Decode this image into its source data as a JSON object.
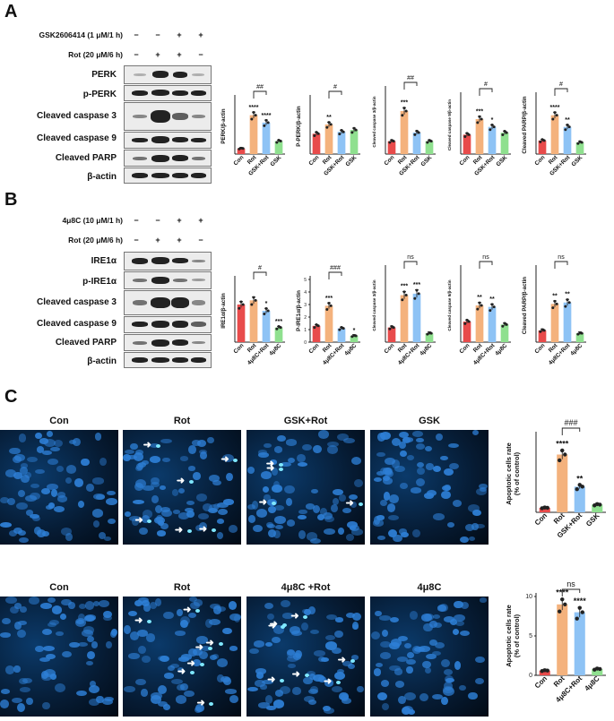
{
  "panels": {
    "a": "A",
    "b": "B",
    "c": "C"
  },
  "colors": {
    "con": "#e84b4b",
    "rot": "#f4b27d",
    "combo": "#8ec3f5",
    "single": "#8fe08f"
  },
  "panel_a": {
    "treatments": [
      {
        "label": "GSK2606414 (1 μM/1 h)",
        "signs": [
          "−",
          "−",
          "+",
          "+"
        ]
      },
      {
        "label": "Rot (20 μM/6 h)",
        "signs": [
          "−",
          "+",
          "+",
          "−"
        ]
      }
    ],
    "bands": [
      "PERK",
      "p-PERK",
      "Cleaved caspase 3",
      "Cleaved caspase 9",
      "Cleaved PARP",
      "β-actin"
    ]
  },
  "panel_b": {
    "treatments": [
      {
        "label": "4μ8C (10 μM/1 h)",
        "signs": [
          "−",
          "−",
          "+",
          "+"
        ]
      },
      {
        "label": "Rot (20 μM/6 h)",
        "signs": [
          "−",
          "+",
          "+",
          "−"
        ]
      }
    ],
    "bands": [
      "IRE1α",
      "p-IRE1α",
      "Cleaved caspase 3",
      "Cleaved caspase 9",
      "Cleaved PARP",
      "β-actin"
    ]
  },
  "panel_c": {
    "row1": [
      "Con",
      "Rot",
      "GSK+Rot",
      "GSK"
    ],
    "row2": [
      "Con",
      "Rot",
      "4μ8C +Rot",
      "4μ8C"
    ]
  },
  "chart_data": [
    {
      "type": "bar",
      "panel": "A",
      "ylabel": "PERK/β-actin",
      "categories": [
        "Con",
        "Rot",
        "GSK+Rot",
        "GSK"
      ],
      "values": [
        0.15,
        1.05,
        0.85,
        0.35
      ],
      "ymax": 1.5,
      "yticks": [],
      "bar_labels": [
        "",
        "****",
        "****",
        ""
      ],
      "bracket": {
        "from": 1,
        "to": 2,
        "label": "##"
      }
    },
    {
      "type": "bar",
      "panel": "A",
      "ylabel": "P-PERK/β-actin",
      "categories": [
        "Con",
        "Rot",
        "GSK+Rot",
        "GSK"
      ],
      "values": [
        0.55,
        0.8,
        0.6,
        0.65
      ],
      "ymax": 1.5,
      "yticks": [],
      "bar_labels": [
        "",
        "**",
        "",
        ""
      ],
      "bracket": {
        "from": 1,
        "to": 2,
        "label": "#"
      }
    },
    {
      "type": "bar",
      "panel": "A",
      "ylabel": "Cleaved caspase 3/β-actin",
      "categories": [
        "Con",
        "Rot",
        "GSK+Rot",
        "GSK"
      ],
      "values": [
        0.3,
        1.0,
        0.5,
        0.3
      ],
      "ymax": 1.5,
      "yticks": [],
      "bar_labels": [
        "",
        "***",
        "",
        ""
      ],
      "bracket": {
        "from": 1,
        "to": 2,
        "label": "##"
      }
    },
    {
      "type": "bar",
      "panel": "A",
      "ylabel": "Cleaved caspase 9/β-actin",
      "categories": [
        "Con",
        "Rot",
        "GSK+Rot",
        "GSK"
      ],
      "values": [
        0.5,
        0.9,
        0.7,
        0.55
      ],
      "ymax": 1.5,
      "yticks": [],
      "bar_labels": [
        "",
        "***",
        "*",
        ""
      ],
      "bracket": {
        "from": 1,
        "to": 2,
        "label": "#"
      }
    },
    {
      "type": "bar",
      "panel": "A",
      "ylabel": "Cleaved PARP/β-actin",
      "categories": [
        "Con",
        "Rot",
        "GSK+Rot",
        "GSK"
      ],
      "values": [
        0.35,
        1.0,
        0.7,
        0.3
      ],
      "ymax": 1.5,
      "yticks": [],
      "bar_labels": [
        "",
        "****",
        "**",
        ""
      ],
      "bracket": {
        "from": 1,
        "to": 2,
        "label": "#"
      }
    },
    {
      "type": "bar",
      "panel": "B",
      "ylabel": "IRE1α/β-actin",
      "categories": [
        "Con",
        "Rot",
        "4μ8C+Rot",
        "4μ8C"
      ],
      "values": [
        1.8,
        2.0,
        1.5,
        0.7
      ],
      "ymax": 3.0,
      "yticks": [],
      "bar_labels": [
        "",
        "",
        "*",
        "***"
      ],
      "bracket": {
        "from": 1,
        "to": 2,
        "label": "#"
      }
    },
    {
      "type": "bar",
      "panel": "B",
      "ylabel": "P-IRE1α/β-actin",
      "categories": [
        "Con",
        "Rot",
        "4μ8C+Rot",
        "4μ8C"
      ],
      "values": [
        1.3,
        2.9,
        1.1,
        0.5
      ],
      "ymax": 5.0,
      "yticks": [
        "5",
        "4",
        "3",
        "2",
        "1",
        "0"
      ],
      "bar_labels": [
        "",
        "***",
        "",
        "*"
      ],
      "bracket": {
        "from": 1,
        "to": 2,
        "label": "###"
      }
    },
    {
      "type": "bar",
      "panel": "B",
      "ylabel": "Cleaved caspase 3/β-actin",
      "categories": [
        "Con",
        "Rot",
        "4μ8C+Rot",
        "4μ8C"
      ],
      "values": [
        1.0,
        3.2,
        3.3,
        0.6
      ],
      "ymax": 5.0,
      "yticks": [],
      "bar_labels": [
        "",
        "***",
        "***",
        ""
      ],
      "bracket": {
        "from": 1,
        "to": 2,
        "label": "ns"
      }
    },
    {
      "type": "bar",
      "panel": "B",
      "ylabel": "Cleaved caspase 9/β-actin",
      "categories": [
        "Con",
        "Rot",
        "4μ8C+Rot",
        "4μ8C"
      ],
      "values": [
        1.4,
        2.5,
        2.4,
        1.2
      ],
      "ymax": 5.0,
      "yticks": [],
      "bar_labels": [
        "",
        "**",
        "**",
        ""
      ],
      "bracket": {
        "from": 1,
        "to": 2,
        "label": "ns"
      }
    },
    {
      "type": "bar",
      "panel": "B",
      "ylabel": "Cleaved PARP/β-actin",
      "categories": [
        "Con",
        "Rot",
        "4μ8C+Rot",
        "4μ8C"
      ],
      "values": [
        0.8,
        2.6,
        2.7,
        0.6
      ],
      "ymax": 5.0,
      "yticks": [],
      "bar_labels": [
        "",
        "**",
        "**",
        ""
      ],
      "bracket": {
        "from": 1,
        "to": 2,
        "label": "ns"
      }
    },
    {
      "type": "bar",
      "panel": "C",
      "ylabel": "Apoptotic cells rate\n(% of control)",
      "categories": [
        "Con",
        "Rot",
        "GSK+Rot",
        "GSK"
      ],
      "values": [
        0.7,
        9.0,
        4.0,
        1.2
      ],
      "ymax": 12,
      "yticks": [],
      "bar_labels": [
        "",
        "****",
        "**",
        ""
      ],
      "bracket": {
        "from": 1,
        "to": 2,
        "label": "###"
      }
    },
    {
      "type": "bar",
      "panel": "C",
      "ylabel": "Apoptotic cells rate\n(% of control)",
      "categories": [
        "Con",
        "Rot",
        "4μ8C+Rot",
        "4μ8C"
      ],
      "values": [
        0.6,
        9.0,
        8.0,
        0.8
      ],
      "ymax": 10,
      "yticks": [
        "10",
        "5",
        "0"
      ],
      "bar_labels": [
        "",
        "****",
        "****",
        ""
      ],
      "bracket": {
        "from": 1,
        "to": 2,
        "label": "ns"
      }
    }
  ]
}
